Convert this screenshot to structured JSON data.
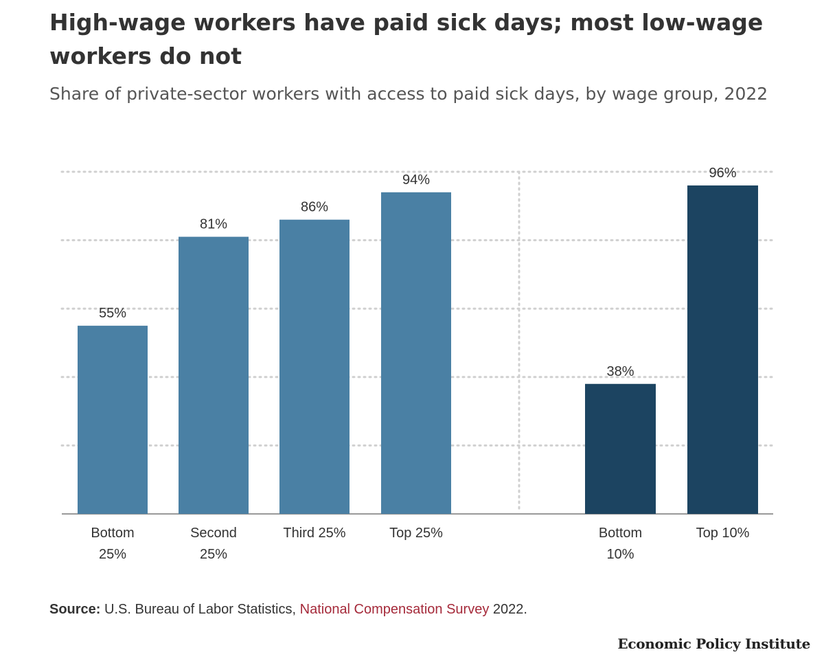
{
  "title": "High-wage workers have paid sick days; most low-wage workers do not",
  "subtitle": "Share of private-sector workers with access to paid sick days, by wage group, 2022",
  "source": {
    "label": "Source:",
    "text": "U.S. Bureau of Labor Statistics, ",
    "link_text": "National Compensation Survey",
    "suffix": " 2022."
  },
  "brand": "Economic Policy Institute",
  "colors": {
    "quartile": "#4a80a4",
    "decile": "#1c4461",
    "grid": "#d0d0d0",
    "baseline": "#999999"
  },
  "chart_data": {
    "type": "bar",
    "title": "High-wage workers have paid sick days; most low-wage workers do not",
    "ylabel": "",
    "xlabel": "",
    "ylim": [
      0,
      100
    ],
    "grid": true,
    "panels": [
      {
        "name": "quartiles",
        "categories": [
          [
            "Bottom",
            "25%"
          ],
          [
            "Second",
            "25%"
          ],
          [
            "Third 25%"
          ],
          [
            "Top 25%"
          ]
        ],
        "values": [
          55,
          81,
          86,
          94
        ],
        "labels": [
          "55%",
          "81%",
          "86%",
          "94%"
        ]
      },
      {
        "name": "deciles",
        "categories": [
          [
            "Bottom",
            "10%"
          ],
          [
            "Top 10%"
          ]
        ],
        "values": [
          38,
          96
        ],
        "labels": [
          "38%",
          "96%"
        ]
      }
    ]
  }
}
